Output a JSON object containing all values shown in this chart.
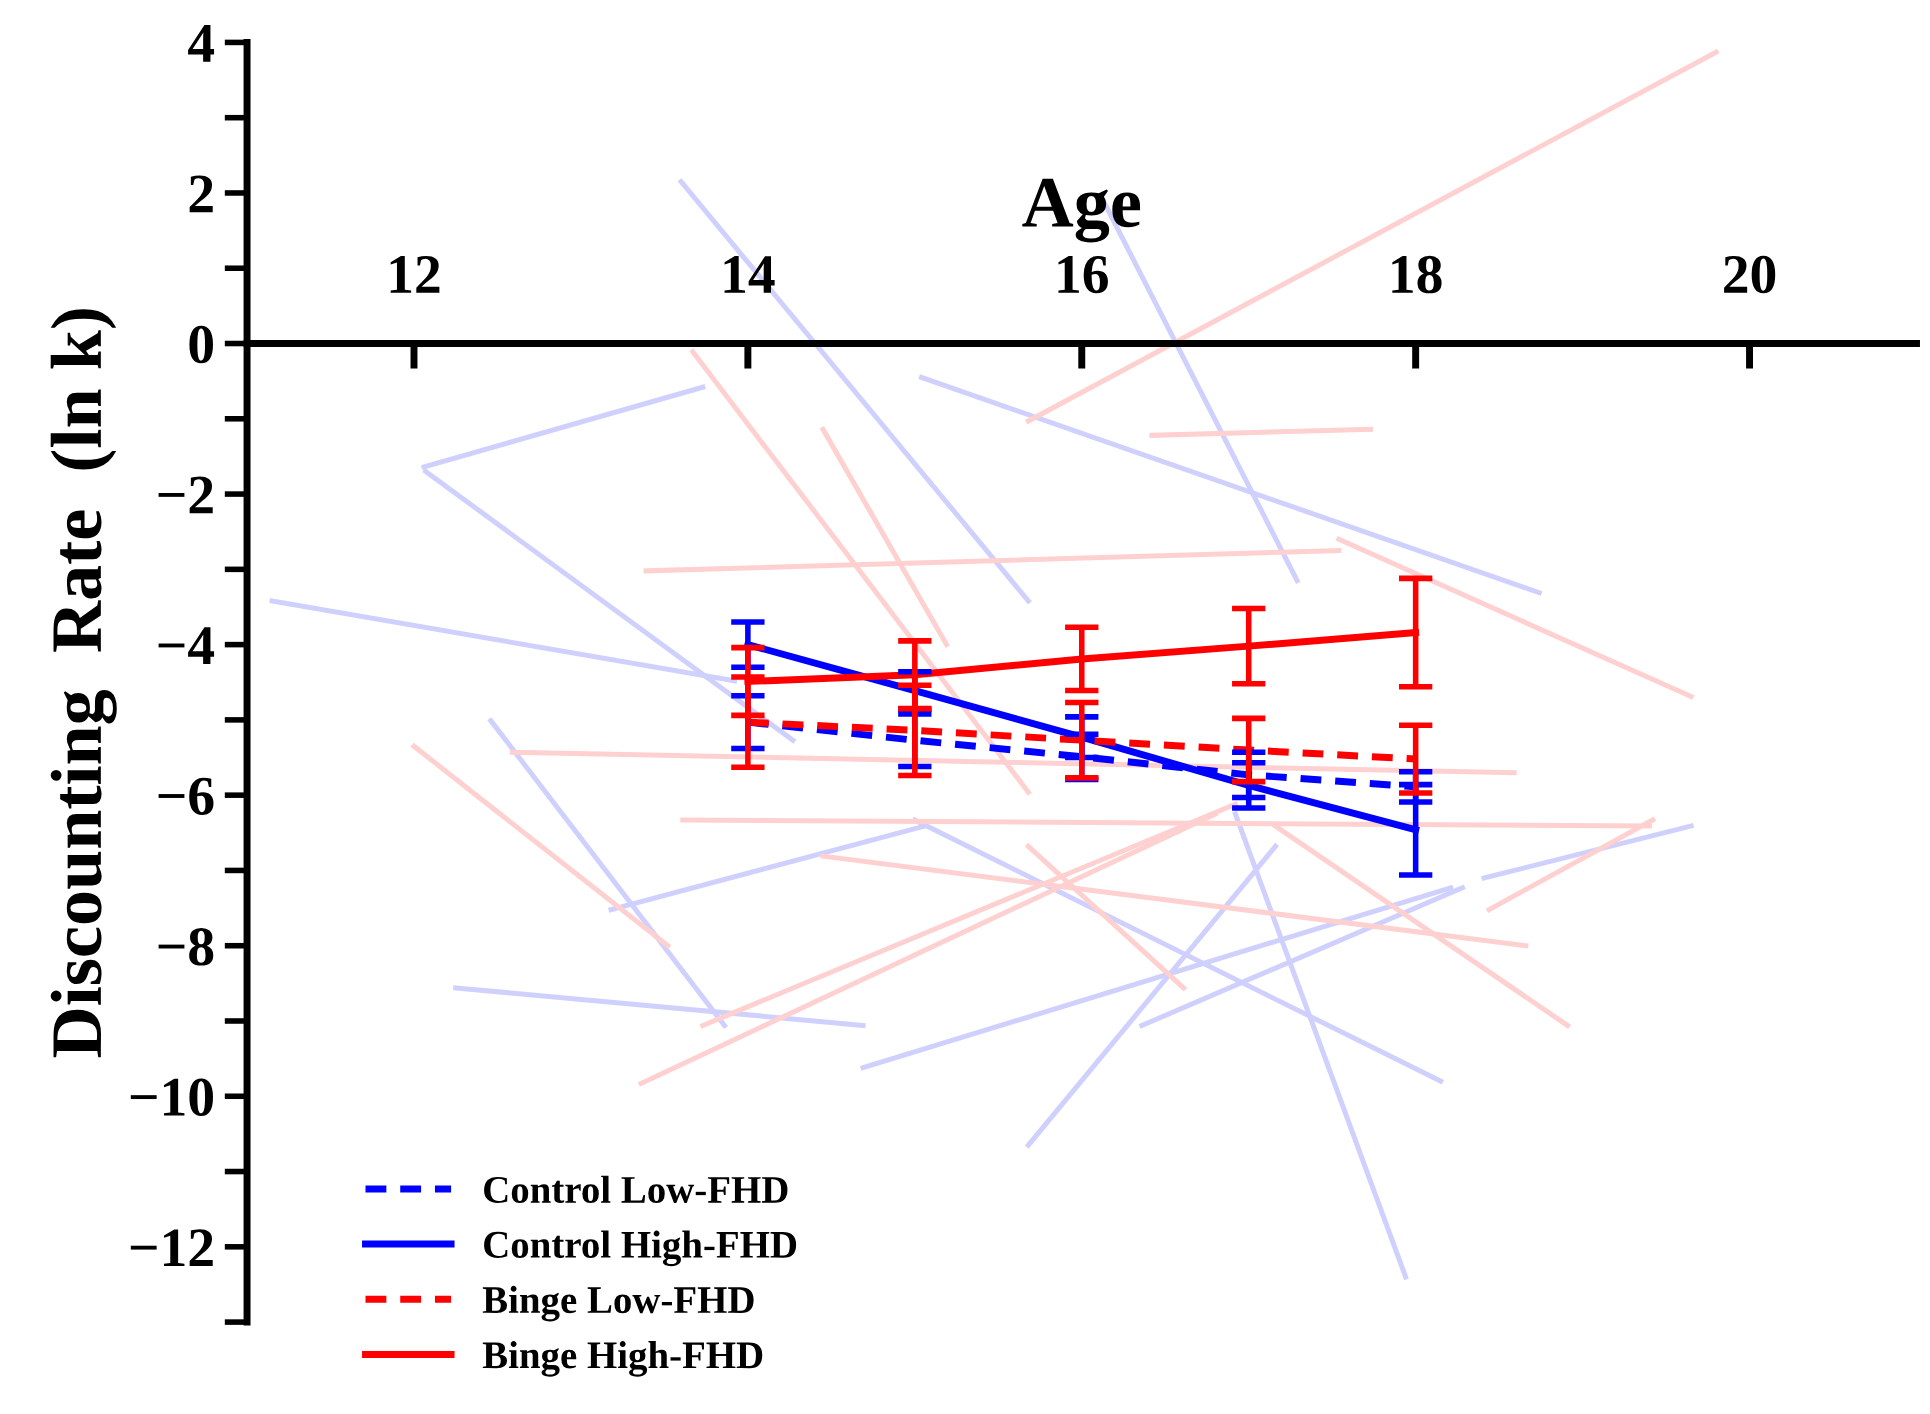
{
  "chart_data": {
    "type": "line",
    "xlabel": "Age",
    "ylabel": "Discounting  Rate  (ln k)",
    "xlim": [
      11,
      21
    ],
    "xticks": [
      12,
      14,
      16,
      18,
      20
    ],
    "ylim": [
      -13,
      4
    ],
    "yticks": [
      {
        "value": -13,
        "label": null
      },
      -12,
      {
        "value": -11,
        "label": null
      },
      -10,
      {
        "value": -9,
        "label": null
      },
      -8,
      {
        "value": -7,
        "label": null
      },
      -6,
      {
        "value": -5,
        "label": null
      },
      -4,
      {
        "value": -3,
        "label": null
      },
      -2,
      {
        "value": -1,
        "label": null
      },
      0,
      {
        "value": 1,
        "label": null
      },
      2,
      {
        "value": 3,
        "label": null
      },
      4
    ],
    "grid": false,
    "legend": "bottom left",
    "marker": "none",
    "series": [
      {
        "color": "#d0d0ff",
        "x": [
          13.6,
          15.68
        ],
        "values": [
          2.15,
          -3.42
        ]
      },
      {
        "color": "#d0d0ff",
        "x": [
          12.07,
          14.27
        ],
        "values": [
          -1.7,
          -5.27
        ]
      },
      {
        "color": "#d0d0ff",
        "x": [
          16.14,
          17.29
        ],
        "values": [
          1.85,
          -3.15
        ]
      },
      {
        "color": "#d0d0ff",
        "x": [
          12.06,
          13.73
        ],
        "values": [
          -1.64,
          -0.58
        ]
      },
      {
        "color": "#d0d0ff",
        "x": [
          15.04,
          18.74
        ],
        "values": [
          -0.45,
          -3.31
        ]
      },
      {
        "color": "#d0d0ff",
        "x": [
          11.15,
          13.92
        ],
        "values": [
          -3.42,
          -4.48
        ]
      },
      {
        "color": "#d0d0ff",
        "x": [
          12.25,
          14.69
        ],
        "values": [
          -8.56,
          -9.06
        ]
      },
      {
        "color": "#d0d0ff",
        "x": [
          14.69,
          18.21
        ],
        "values": [
          -9.62,
          -7.23
        ]
      },
      {
        "color": "#d0d0ff",
        "x": [
          15.68,
          17.16
        ],
        "values": [
          -10.65,
          -6.68
        ]
      },
      {
        "color": "#d0d0ff",
        "x": [
          16.92,
          17.94
        ],
        "values": [
          -6.25,
          -12.4
        ]
      },
      {
        "color": "#d0d0ff",
        "x": [
          13.18,
          15.06
        ],
        "values": [
          -7.52,
          -6.41
        ]
      },
      {
        "color": "#d0d0ff",
        "x": [
          18.41,
          19.65
        ],
        "values": [
          -7.1,
          -6.41
        ]
      },
      {
        "color": "#d0d0ff",
        "x": [
          15.0,
          18.15
        ],
        "values": [
          -6.33,
          -9.8
        ]
      },
      {
        "color": "#d0d0ff",
        "x": [
          16.36,
          18.28
        ],
        "values": [
          -9.06,
          -7.23
        ]
      },
      {
        "color": "#d0d0ff",
        "x": [
          12.46,
          13.86
        ],
        "values": [
          -5.01,
          -9.06
        ]
      },
      {
        "color": "#ffd0d0",
        "x": [
          15.68,
          19.8
        ],
        "values": [
          -1.03,
          3.87
        ]
      },
      {
        "color": "#ffd0d0",
        "x": [
          13.67,
          15.68
        ],
        "values": [
          -0.11,
          -5.96
        ]
      },
      {
        "color": "#ffd0d0",
        "x": [
          14.45,
          15.19
        ],
        "values": [
          -1.14,
          -4.0
        ]
      },
      {
        "color": "#ffd0d0",
        "x": [
          16.42,
          17.73
        ],
        "values": [
          -1.22,
          -1.14
        ]
      },
      {
        "color": "#ffd0d0",
        "x": [
          13.39,
          17.54
        ],
        "values": [
          -3.02,
          -2.75
        ]
      },
      {
        "color": "#ffd0d0",
        "x": [
          12.0,
          13.52
        ],
        "values": [
          -5.35,
          -8.0
        ]
      },
      {
        "color": "#ffd0d0",
        "x": [
          13.36,
          16.8
        ],
        "values": [
          -9.83,
          -6.25
        ]
      },
      {
        "color": "#ffd0d0",
        "x": [
          13.73,
          16.92
        ],
        "values": [
          -9.06,
          -6.12
        ]
      },
      {
        "color": "#ffd0d0",
        "x": [
          13.61,
          19.4
        ],
        "values": [
          -6.33,
          -6.41
        ]
      },
      {
        "color": "#ffd0d0",
        "x": [
          14.45,
          18.66
        ],
        "values": [
          -6.81,
          -8.0
        ]
      },
      {
        "color": "#ffd0d0",
        "x": [
          18.44,
          19.42
        ],
        "values": [
          -7.52,
          -6.33
        ]
      },
      {
        "color": "#ffd0d0",
        "x": [
          17.16,
          18.91
        ],
        "values": [
          -6.41,
          -9.06
        ]
      },
      {
        "color": "#ffd0d0",
        "x": [
          12.59,
          18.59
        ],
        "values": [
          -5.43,
          -5.7
        ]
      },
      {
        "color": "#ffd0d0",
        "x": [
          15.68,
          16.61
        ],
        "values": [
          -6.68,
          -8.56
        ]
      },
      {
        "color": "#ffd0d0",
        "x": [
          17.54,
          19.65
        ],
        "values": [
          -2.6,
          -4.69
        ]
      },
      {
        "name": "Control Low-FHD",
        "color": "#0000ff",
        "line_style": "dashed",
        "x": [
          14,
          15,
          16,
          17,
          18
        ],
        "values": [
          -5.03,
          -5.27,
          -5.49,
          -5.73,
          -5.89
        ],
        "errors": [
          0.35,
          0.35,
          0.3,
          0.3,
          0.2
        ]
      },
      {
        "name": "Control High-FHD",
        "color": "#0000ff",
        "line_style": "solid",
        "x": [
          14,
          15,
          16,
          17,
          18
        ],
        "values": [
          -4.0,
          -4.61,
          -5.23,
          -5.87,
          -6.46
        ],
        "errors": [
          0.3,
          0.25,
          0.27,
          0.3,
          0.6
        ]
      },
      {
        "name": "Binge Low-FHD",
        "color": "#ff0000",
        "line_style": "dashed",
        "x": [
          14,
          15,
          16,
          17,
          18
        ],
        "values": [
          -5.03,
          -5.14,
          -5.27,
          -5.4,
          -5.52
        ],
        "errors": [
          0.6,
          0.6,
          0.5,
          0.42,
          0.45
        ]
      },
      {
        "name": "Binge High-FHD",
        "color": "#ff0000",
        "line_style": "solid",
        "x": [
          14,
          15,
          16,
          17,
          18
        ],
        "values": [
          -4.49,
          -4.4,
          -4.19,
          -4.02,
          -3.84
        ],
        "errors": [
          0.45,
          0.45,
          0.42,
          0.5,
          0.72
        ]
      }
    ]
  }
}
